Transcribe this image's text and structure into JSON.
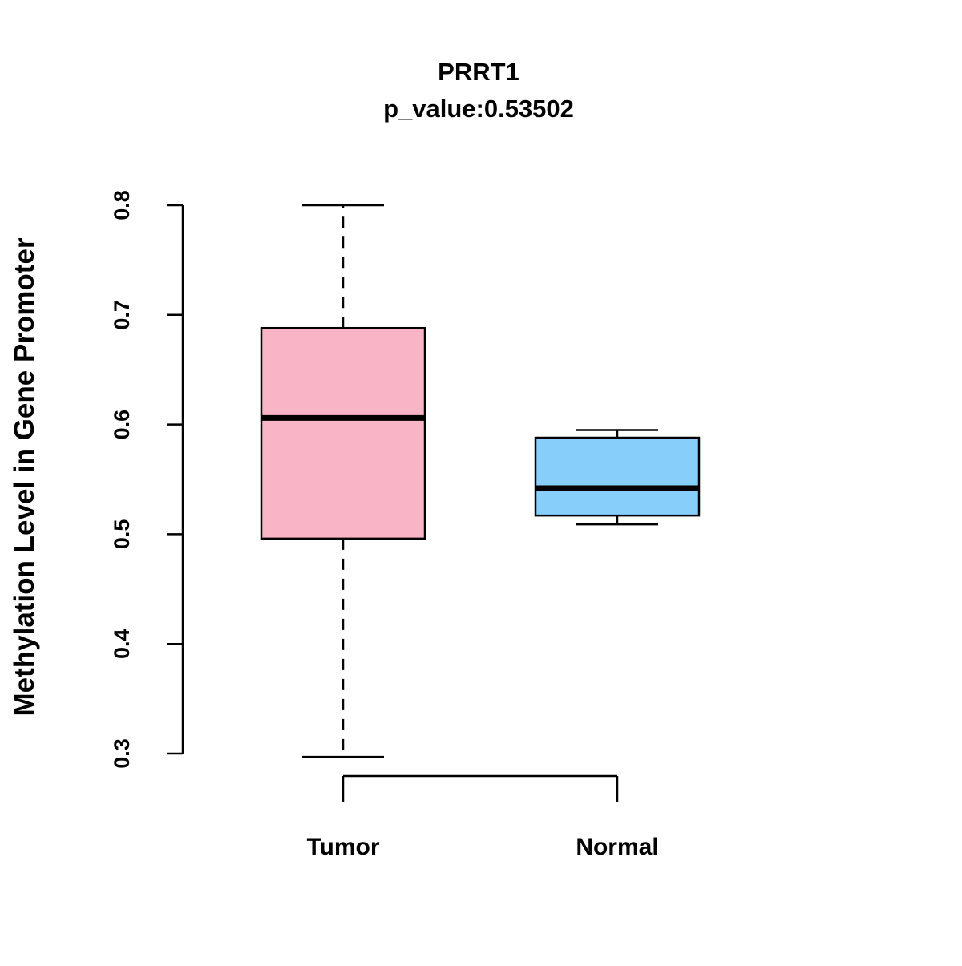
{
  "chart_data": {
    "type": "boxplot",
    "title": "PRRT1",
    "subtitle": "p_value:0.53502",
    "ylabel": "Methylation Level in Gene Promoter",
    "xlabel": "",
    "ylim": [
      0.3,
      0.8
    ],
    "yticks": [
      "0.3",
      "0.4",
      "0.5",
      "0.6",
      "0.7",
      "0.8"
    ],
    "grid": false,
    "legend": false,
    "groups": [
      {
        "label": "Tumor",
        "color": "#F9B5C6",
        "stats": {
          "lower_whisker": 0.297,
          "q1": 0.496,
          "median": 0.606,
          "q3": 0.688,
          "upper_whisker": 0.8
        }
      },
      {
        "label": "Normal",
        "color": "#87CEFA",
        "stats": {
          "lower_whisker": 0.509,
          "q1": 0.517,
          "median": 0.542,
          "q3": 0.588,
          "upper_whisker": 0.595
        }
      }
    ]
  }
}
